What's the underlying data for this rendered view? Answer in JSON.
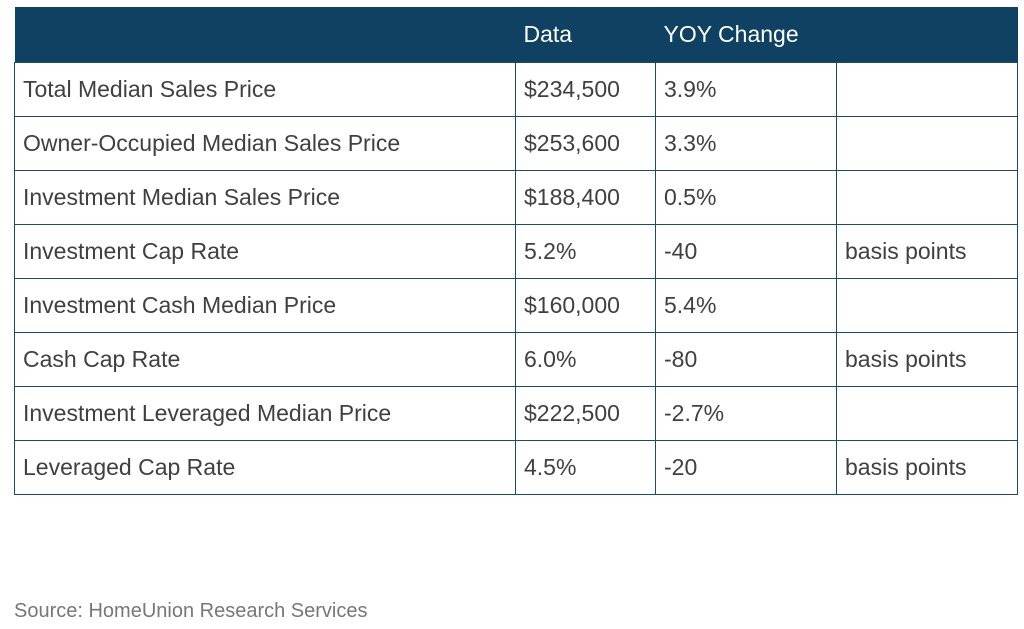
{
  "chart_data": {
    "type": "table",
    "columns": [
      "",
      "Data",
      "YOY Change",
      ""
    ],
    "rows": [
      {
        "label": "Total Median Sales Price",
        "data": "$234,500",
        "yoy": "3.9%",
        "unit": ""
      },
      {
        "label": "Owner-Occupied Median Sales Price",
        "data": "$253,600",
        "yoy": "3.3%",
        "unit": ""
      },
      {
        "label": "Investment Median Sales Price",
        "data": "$188,400",
        "yoy": "0.5%",
        "unit": ""
      },
      {
        "label": "Investment Cap Rate",
        "data": "5.2%",
        "yoy": "-40",
        "unit": "basis points"
      },
      {
        "label": "Investment Cash Median Price",
        "data": "$160,000",
        "yoy": "5.4%",
        "unit": ""
      },
      {
        "label": "Cash Cap Rate",
        "data": "6.0%",
        "yoy": "-80",
        "unit": "basis points"
      },
      {
        "label": "Investment Leveraged Median Price",
        "data": "$222,500",
        "yoy": "-2.7%",
        "unit": ""
      },
      {
        "label": "Leveraged Cap Rate",
        "data": "4.5%",
        "yoy": "-20",
        "unit": "basis points"
      }
    ],
    "source": "Source: HomeUnion Research Services"
  },
  "colors": {
    "header_bg": "#0f4163",
    "header_text": "#ffffff",
    "border": "#1c4a68",
    "source_text": "#777777"
  }
}
